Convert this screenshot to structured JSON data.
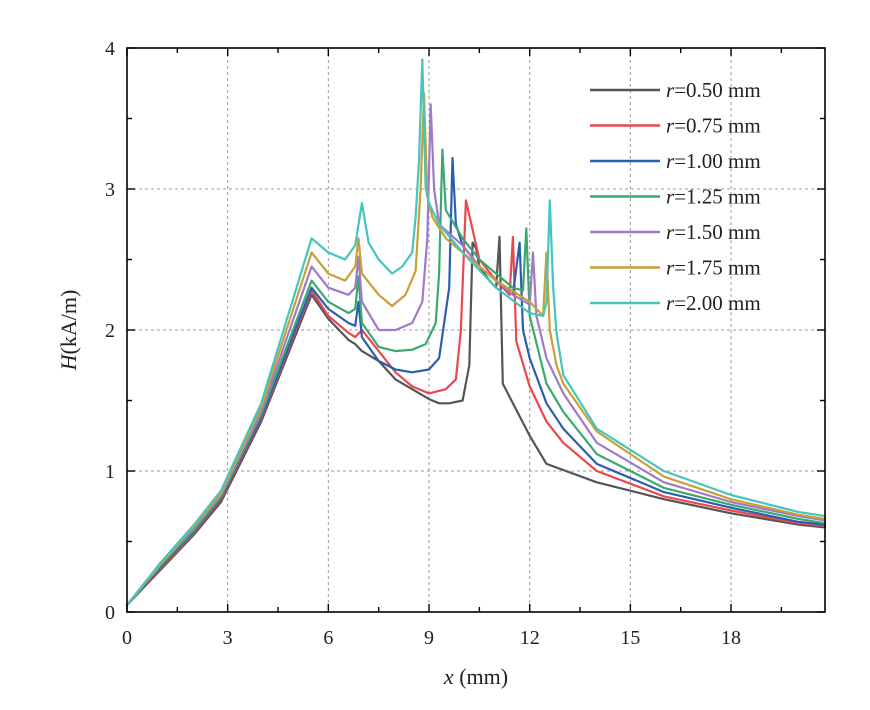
{
  "chart_data": {
    "type": "line",
    "xlabel_var": "x",
    "xlabel_unit": " (mm)",
    "ylabel_var": "H",
    "ylabel_unit": "(kA/m)",
    "xlim": [
      0,
      20.8
    ],
    "ylim": [
      0,
      4
    ],
    "xticks": [
      0,
      3,
      6,
      9,
      12,
      15,
      18
    ],
    "xtick_labels": [
      "0",
      "3",
      "6",
      "9",
      "12",
      "15",
      "18"
    ],
    "yticks": [
      0,
      1,
      2,
      3,
      4
    ],
    "ytick_labels": [
      "0",
      "1",
      "2",
      "3",
      "4"
    ],
    "grid": true,
    "legend_position": "top-right",
    "series": [
      {
        "name": "r=0.50 mm",
        "var": "r",
        "label_rest": "=0.50 mm",
        "color": "#555555",
        "x": [
          0,
          1,
          2,
          2.8,
          4,
          5.5,
          6,
          6.6,
          6.8,
          7,
          7.5,
          8,
          8.5,
          9,
          9.3,
          9.6,
          10,
          10.2,
          10.3,
          10.4,
          10.5,
          10.8,
          11,
          11.1,
          11.2,
          11.5,
          12,
          12.5,
          14,
          16,
          18,
          20,
          20.8
        ],
        "y": [
          0.05,
          0.3,
          0.55,
          0.78,
          1.35,
          2.25,
          2.08,
          1.93,
          1.9,
          1.85,
          1.78,
          1.65,
          1.58,
          1.51,
          1.48,
          1.48,
          1.5,
          1.75,
          2.62,
          2.58,
          2.45,
          2.35,
          2.3,
          2.66,
          1.62,
          1.48,
          1.25,
          1.05,
          0.92,
          0.8,
          0.7,
          0.62,
          0.6
        ]
      },
      {
        "name": "r=0.75 mm",
        "var": "r",
        "label_rest": "=0.75 mm",
        "color": "#e8484e",
        "x": [
          0,
          1,
          2,
          2.8,
          4,
          5.5,
          6,
          6.6,
          6.8,
          7,
          7.5,
          8,
          8.5,
          9,
          9.5,
          9.8,
          9.95,
          10.1,
          10.5,
          11,
          11.4,
          11.5,
          11.6,
          12,
          12.5,
          13,
          14,
          16,
          18,
          20,
          20.8
        ],
        "y": [
          0.05,
          0.31,
          0.56,
          0.8,
          1.37,
          2.28,
          2.1,
          1.98,
          1.95,
          2.0,
          1.85,
          1.7,
          1.6,
          1.55,
          1.58,
          1.65,
          2.0,
          2.92,
          2.5,
          2.35,
          2.25,
          2.66,
          1.92,
          1.6,
          1.35,
          1.2,
          1.0,
          0.82,
          0.72,
          0.63,
          0.61
        ]
      },
      {
        "name": "r=1.00 mm",
        "var": "r",
        "label_rest": "=1.00 mm",
        "color": "#2a5fb0",
        "x": [
          0,
          1,
          2,
          2.8,
          4,
          5.5,
          6,
          6.6,
          6.8,
          6.9,
          7,
          7.5,
          8,
          8.5,
          9,
          9.3,
          9.6,
          9.7,
          9.8,
          10,
          10.5,
          11,
          11.5,
          11.7,
          11.8,
          12,
          12.5,
          13,
          14,
          16,
          18,
          20,
          20.8
        ],
        "y": [
          0.05,
          0.32,
          0.57,
          0.81,
          1.38,
          2.3,
          2.15,
          2.05,
          2.03,
          2.2,
          1.95,
          1.78,
          1.72,
          1.7,
          1.72,
          1.8,
          2.3,
          3.22,
          2.75,
          2.6,
          2.45,
          2.35,
          2.25,
          2.62,
          2.0,
          1.8,
          1.48,
          1.3,
          1.05,
          0.85,
          0.74,
          0.64,
          0.62
        ]
      },
      {
        "name": "r=1.25 mm",
        "var": "r",
        "label_rest": "=1.25 mm",
        "color": "#3ba870",
        "x": [
          0,
          1,
          2,
          2.8,
          4,
          5.5,
          6,
          6.6,
          6.8,
          6.9,
          7,
          7.5,
          8,
          8.5,
          8.9,
          9.2,
          9.3,
          9.4,
          9.5,
          10,
          10.5,
          11,
          11.5,
          11.8,
          11.9,
          12,
          12.5,
          13,
          14,
          16,
          18,
          20,
          20.8
        ],
        "y": [
          0.05,
          0.33,
          0.58,
          0.82,
          1.4,
          2.35,
          2.2,
          2.12,
          2.15,
          2.38,
          2.05,
          1.88,
          1.85,
          1.86,
          1.9,
          2.05,
          2.4,
          3.28,
          2.85,
          2.65,
          2.5,
          2.4,
          2.3,
          2.28,
          2.72,
          2.1,
          1.62,
          1.42,
          1.12,
          0.88,
          0.76,
          0.66,
          0.63
        ]
      },
      {
        "name": "r=1.50 mm",
        "var": "r",
        "label_rest": "=1.50 mm",
        "color": "#a07ac6",
        "x": [
          0,
          1,
          2,
          2.8,
          4,
          5.5,
          6,
          6.6,
          6.8,
          6.9,
          7,
          7.5,
          8,
          8.5,
          8.8,
          8.95,
          9.05,
          9.15,
          9.3,
          10,
          10.5,
          11,
          11.5,
          12,
          12.1,
          12.2,
          12.3,
          12.5,
          13,
          14,
          16,
          18,
          20,
          20.8
        ],
        "y": [
          0.05,
          0.34,
          0.6,
          0.83,
          1.42,
          2.45,
          2.3,
          2.25,
          2.3,
          2.52,
          2.2,
          2.0,
          2.0,
          2.05,
          2.2,
          2.65,
          3.6,
          3.0,
          2.75,
          2.6,
          2.45,
          2.35,
          2.25,
          2.18,
          2.55,
          2.1,
          2.0,
          1.8,
          1.55,
          1.2,
          0.92,
          0.78,
          0.68,
          0.65
        ]
      },
      {
        "name": "r=1.75 mm",
        "var": "r",
        "label_rest": "=1.75 mm",
        "color": "#c9a033",
        "x": [
          0,
          1,
          2,
          2.8,
          4,
          5.5,
          6,
          6.5,
          6.8,
          6.9,
          7,
          7.5,
          7.9,
          8.3,
          8.6,
          8.75,
          8.85,
          8.95,
          9.1,
          9.5,
          10,
          11,
          12,
          12.4,
          12.5,
          12.6,
          12.8,
          13,
          14,
          16,
          18,
          20,
          20.8
        ],
        "y": [
          0.05,
          0.34,
          0.61,
          0.84,
          1.45,
          2.55,
          2.4,
          2.35,
          2.45,
          2.65,
          2.4,
          2.25,
          2.17,
          2.25,
          2.42,
          3.0,
          3.68,
          2.95,
          2.8,
          2.65,
          2.55,
          2.35,
          2.2,
          2.1,
          2.55,
          2.0,
          1.75,
          1.62,
          1.28,
          0.96,
          0.8,
          0.69,
          0.66
        ]
      },
      {
        "name": "r=2.00 mm",
        "var": "r",
        "label_rest": "=2.00 mm",
        "color": "#45c4c0",
        "x": [
          0,
          1,
          2,
          2.8,
          4,
          5.5,
          6,
          6.5,
          6.8,
          7,
          7.2,
          7.5,
          7.9,
          8.2,
          8.5,
          8.6,
          8.7,
          8.8,
          8.9,
          9.0,
          9.3,
          10,
          11,
          12,
          12.4,
          12.5,
          12.6,
          12.7,
          12.8,
          13,
          14,
          16,
          18,
          20,
          20.8
        ],
        "y": [
          0.05,
          0.35,
          0.62,
          0.86,
          1.48,
          2.65,
          2.55,
          2.5,
          2.6,
          2.9,
          2.62,
          2.5,
          2.4,
          2.45,
          2.55,
          2.8,
          3.2,
          3.92,
          3.0,
          2.9,
          2.75,
          2.55,
          2.3,
          2.12,
          2.1,
          2.2,
          2.92,
          2.3,
          1.98,
          1.68,
          1.3,
          1.0,
          0.83,
          0.71,
          0.68
        ]
      }
    ]
  }
}
